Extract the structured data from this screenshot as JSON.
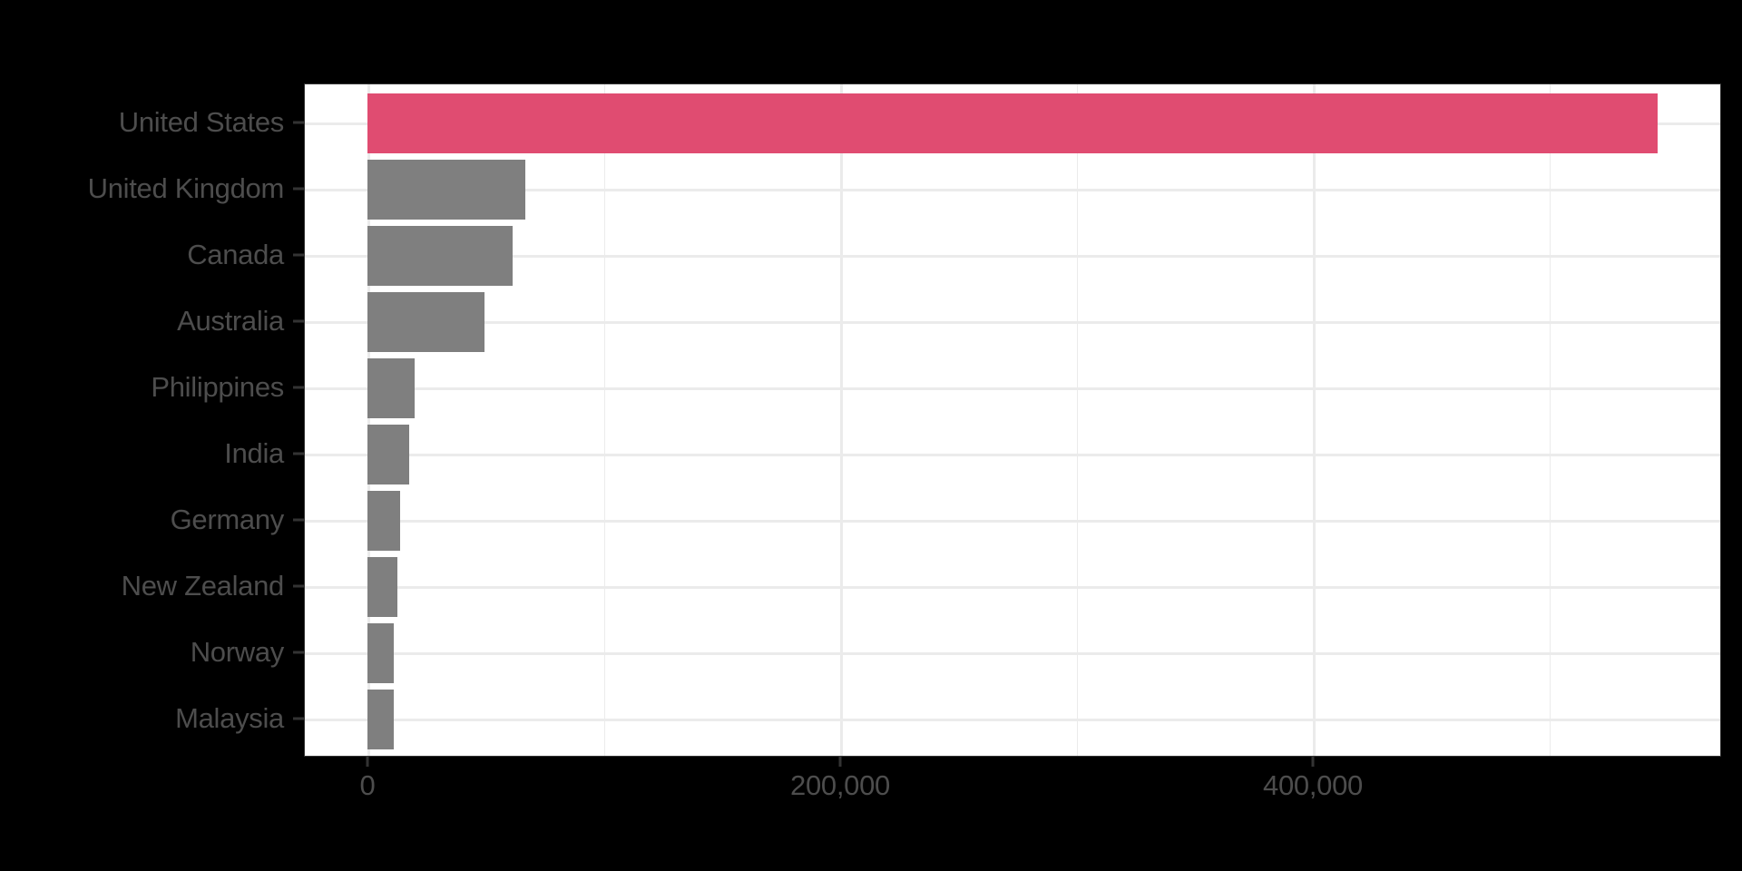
{
  "chart_data": {
    "type": "bar",
    "orientation": "horizontal",
    "title": "",
    "xlabel": "",
    "ylabel": "",
    "categories": [
      "United States",
      "United Kingdom",
      "Canada",
      "Australia",
      "Philippines",
      "India",
      "Germany",
      "New Zealand",
      "Norway",
      "Malaysia"
    ],
    "values": [
      546000,
      66800,
      61800,
      49900,
      20000,
      17700,
      14200,
      13000,
      11500,
      11500
    ],
    "highlight": "United States",
    "colors": {
      "highlight": "#e04c71",
      "default": "#7f7f7f",
      "panel_background": "#ffffff",
      "page_background": "#000000",
      "gridline": "#ebebeb",
      "axis_text": "#4d4d4d",
      "border": "#333333"
    },
    "x_ticks": [
      0,
      200000,
      400000
    ],
    "x_tick_labels": [
      "0",
      "200,000",
      "400,000"
    ],
    "x_minor_gridlines": [
      100000,
      300000,
      500000
    ],
    "xlim": [
      -26000,
      573000
    ],
    "grid": true,
    "legend": "none"
  }
}
